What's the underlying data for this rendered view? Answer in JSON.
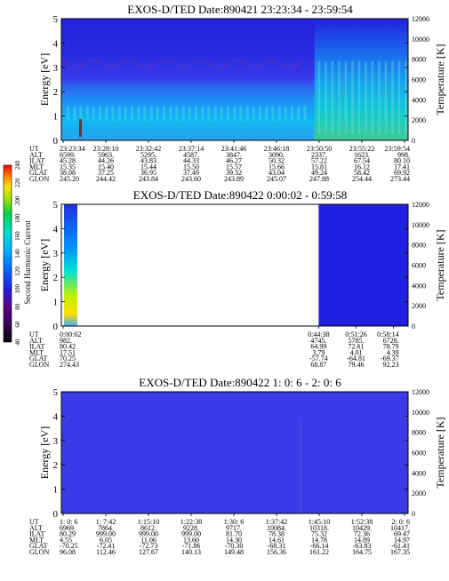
{
  "panels": [
    {
      "title": "EXOS-D/TED   Date:890421  23:23:34 - 23:59:54",
      "ylabel": "Energy [eV]",
      "y2label": "Temperature [K]",
      "yticks": [
        "0",
        "1",
        "2",
        "3",
        "4",
        "5"
      ],
      "y2ticks": [
        "0",
        "2000",
        "4000",
        "6000",
        "8000",
        "10000",
        "12000"
      ],
      "rowlabels": [
        "UT",
        "ALT",
        "ILAT",
        "MLT",
        "GLAT",
        "GLON"
      ],
      "columns": [
        [
          "23:23:34",
          "6599.",
          "45.28",
          "15.35",
          "38.08",
          "245.20"
        ],
        [
          "23:28:10",
          "5963.",
          "44.26",
          "15.40",
          "37.25",
          "244.42"
        ],
        [
          "23:32:42",
          "5295.",
          "43.83",
          "15.44",
          "36.95",
          "243.84"
        ],
        [
          "23:37:14",
          "4587.",
          "44.33",
          "15.50",
          "37.49",
          "243.60"
        ],
        [
          "23:41:46",
          "3847.",
          "46.27",
          "15.57",
          "39.32",
          "243.89"
        ],
        [
          "23:46:18",
          "3090.",
          "50.32",
          "15.66",
          "43.04",
          "245.07"
        ],
        [
          "23:50:50",
          "2337.",
          "57.22",
          "15.81",
          "49.24",
          "247.88"
        ],
        [
          "23:55:22",
          "1623.",
          "67.54",
          "16.12",
          "58.42",
          "254.44"
        ],
        [
          "23:59:54",
          "998.",
          "80.10",
          "17.41",
          "69.92",
          "273.44"
        ]
      ]
    },
    {
      "title": "EXOS-D/TED   Date:890422  0:00:02 - 0:59:58",
      "ylabel": "Energy [eV]",
      "y2label": "Temperature [K]",
      "yticks": [
        "0",
        "1",
        "2",
        "3",
        "4",
        "5"
      ],
      "y2ticks": [
        "0",
        "2000",
        "4000",
        "6000",
        "8000",
        "10000",
        "12000"
      ],
      "rowlabels": [
        "UT",
        "ALT",
        "ILAT",
        "MLT",
        "GLAT",
        "GLON"
      ],
      "columns": [
        [
          "0:00:02",
          "982.",
          "80.42",
          "17.51",
          "70.25",
          "274.43"
        ],
        [
          "0:44:38",
          "4745.",
          "64.99",
          "3.79",
          "-57.74",
          "68.87"
        ],
        [
          "0:51:26",
          "5785.",
          "72.61",
          "4.01",
          "-64.81",
          "79.46"
        ],
        [
          "0:58:14",
          "6728.",
          "78.79",
          "4.39",
          "-69.37",
          "92.23"
        ]
      ]
    },
    {
      "title": "EXOS-D/TED   Date:890422  1: 0: 6 - 2: 0: 6",
      "ylabel": "Energy [eV]",
      "y2label": "Temperature [K]",
      "yticks": [
        "0",
        "1",
        "2",
        "3",
        "4",
        "5"
      ],
      "y2ticks": [
        "0",
        "2000",
        "4000",
        "6000",
        "8000",
        "10000",
        "12000"
      ],
      "rowlabels": [
        "UT",
        "ALT",
        "ILAT",
        "MLT",
        "GLAT",
        "GLON"
      ],
      "columns": [
        [
          "1: 0: 6",
          "6969.",
          "80.29",
          "4.55",
          "-70.25",
          "96.08"
        ],
        [
          "1: 7:42",
          "7864.",
          "999.00",
          "6.05",
          "-72.41",
          "112.46"
        ],
        [
          "1:15:10",
          "8612.",
          "999.00",
          "11.06",
          "-72.73",
          "127.67"
        ],
        [
          "1:22:38",
          "9228.",
          "999.00",
          "13.60",
          "-71.86",
          "140.13"
        ],
        [
          "1:30: 6",
          "9717.",
          "81.70",
          "14.30",
          "-70.30",
          "149.48"
        ],
        [
          "1:37:42",
          "10084.",
          "78.38",
          "14.61",
          "-68.31",
          "156.36"
        ],
        [
          "1:45:10",
          "10318.",
          "75.32",
          "14.78",
          "-66.14",
          "161.22"
        ],
        [
          "1:52:38",
          "10429.",
          "72.36",
          "14.89",
          "-63.83",
          "164.75"
        ],
        [
          "2: 0: 6",
          "10417.",
          "69.47",
          "14.97",
          "-61.41",
          "167.35"
        ]
      ]
    }
  ],
  "colorbar": {
    "label": "Second Harmonic Current",
    "ticks": [
      "40",
      "60",
      "80",
      "100",
      "120",
      "140",
      "160",
      "180",
      "200",
      "220",
      "240"
    ]
  },
  "chart_data": {
    "type": "heatmap",
    "panel_count": 3,
    "energy_range": [
      0,
      5
    ],
    "temperature_range": [
      0,
      12000
    ],
    "colorbar_range": [
      40,
      240
    ],
    "colors": {
      "background": "#2020e0",
      "low": "#3a3ae6",
      "mid": "#0090ff",
      "high": "#00e0e0",
      "peak": "#ffd000",
      "empty": "#ffffff"
    }
  }
}
